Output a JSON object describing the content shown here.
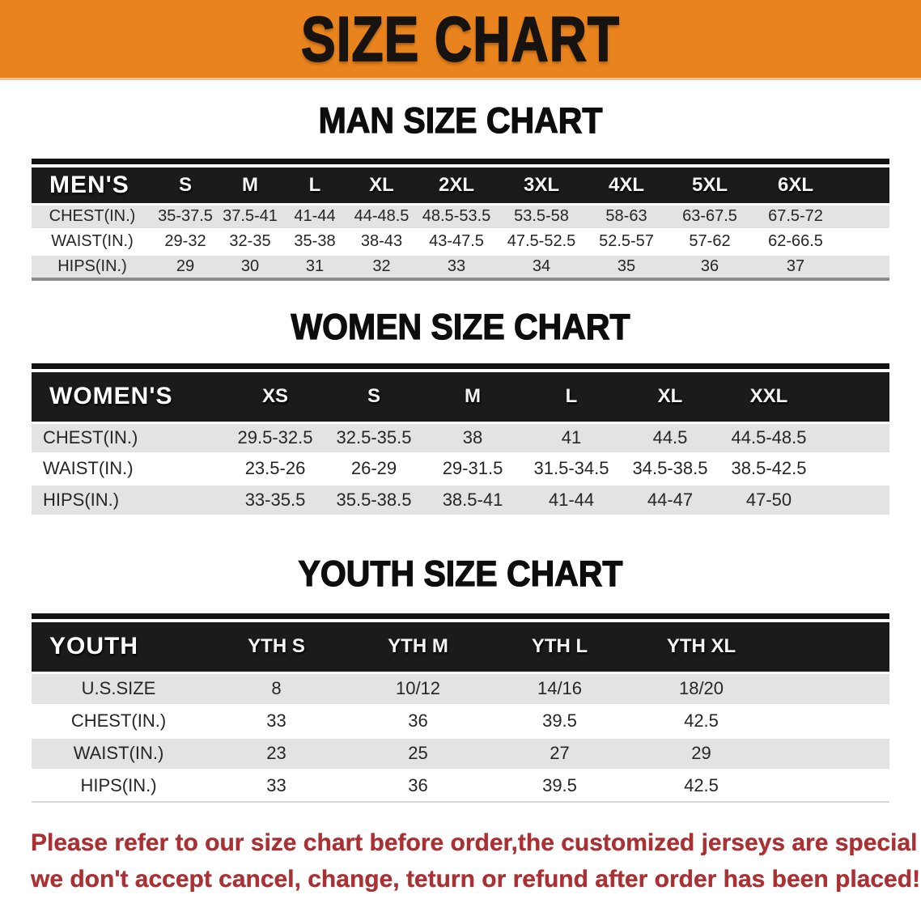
{
  "banner": {
    "title": "SIZE CHART",
    "bg_color": "#E8831D"
  },
  "men": {
    "heading": "MAN SIZE CHART",
    "table": {
      "label": "MEN'S",
      "columns": [
        "S",
        "M",
        "L",
        "XL",
        "2XL",
        "3XL",
        "4XL",
        "5XL",
        "6XL"
      ],
      "rows": [
        {
          "label": "CHEST(IN.)",
          "values": [
            "35-37.5",
            "37.5-41",
            "41-44",
            "44-48.5",
            "48.5-53.5",
            "53.5-58",
            "58-63",
            "63-67.5",
            "67.5-72"
          ]
        },
        {
          "label": "WAIST(IN.)",
          "values": [
            "29-32",
            "32-35",
            "35-38",
            "38-43",
            "43-47.5",
            "47.5-52.5",
            "52.5-57",
            "57-62",
            "62-66.5"
          ]
        },
        {
          "label": "HIPS(IN.)",
          "values": [
            "29",
            "30",
            "31",
            "32",
            "33",
            "34",
            "35",
            "36",
            "37"
          ]
        }
      ]
    }
  },
  "women": {
    "heading": "WOMEN SIZE CHART",
    "table": {
      "label": "WOMEN'S",
      "columns": [
        "XS",
        "S",
        "M",
        "L",
        "XL",
        "XXL"
      ],
      "rows": [
        {
          "label": "CHEST(IN.)",
          "values": [
            "29.5-32.5",
            "32.5-35.5",
            "38",
            "41",
            "44.5",
            "44.5-48.5"
          ]
        },
        {
          "label": "WAIST(IN.)",
          "values": [
            "23.5-26",
            "26-29",
            "29-31.5",
            "31.5-34.5",
            "34.5-38.5",
            "38.5-42.5"
          ]
        },
        {
          "label": "HIPS(IN.)",
          "values": [
            "33-35.5",
            "35.5-38.5",
            "38.5-41",
            "41-44",
            "44-47",
            "47-50"
          ]
        }
      ]
    }
  },
  "youth": {
    "heading": "YOUTH SIZE CHART",
    "table": {
      "label": "YOUTH",
      "columns": [
        "YTH S",
        "YTH M",
        "YTH L",
        "YTH XL"
      ],
      "rows": [
        {
          "label": "U.S.SIZE",
          "values": [
            "8",
            "10/12",
            "14/16",
            "18/20"
          ]
        },
        {
          "label": "CHEST(IN.)",
          "values": [
            "33",
            "36",
            "39.5",
            "42.5"
          ]
        },
        {
          "label": "WAIST(IN.)",
          "values": [
            "23",
            "25",
            "27",
            "29"
          ]
        },
        {
          "label": "HIPS(IN.)",
          "values": [
            "33",
            "36",
            "39.5",
            "42.5"
          ]
        }
      ]
    }
  },
  "footer": {
    "line1": "Please refer to our size chart before order,the customized jerseys are special products,",
    "line2": "we don't accept cancel, change, teturn or refund after order has been placed!",
    "text_color": "#A93134"
  }
}
